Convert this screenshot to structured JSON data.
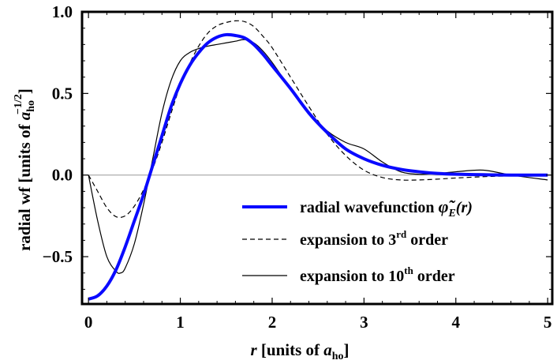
{
  "chart_data": {
    "type": "line",
    "title": "",
    "xlabel": {
      "var": "r",
      "pre": " [units of ",
      "sym": "a",
      "sub": "ho",
      "post": "]"
    },
    "ylabel": {
      "pre": "radial wf [units of ",
      "sym": "a",
      "sub": "ho",
      "sup": "−1/2",
      "post": "]"
    },
    "xlim": [
      -0.07,
      5.05
    ],
    "ylim": [
      -0.79,
      1.0
    ],
    "x_ticks": [
      0,
      1,
      2,
      3,
      4,
      5
    ],
    "x_tick_labels": [
      "0",
      "1",
      "2",
      "3",
      "4",
      "5"
    ],
    "y_ticks": [
      -0.5,
      0.0,
      0.5,
      1.0
    ],
    "y_tick_labels": [
      "−0.5",
      "0.0",
      "0.5",
      "1.0"
    ],
    "zero_line": true,
    "grid": false,
    "legend_position": "bottom-right",
    "colors": {
      "wavefunction": "#0a0aff",
      "expansion": "#000000",
      "zero_line": "#999999"
    },
    "series": [
      {
        "name": {
          "text": "radial wavefunction ",
          "phi": "φ̃",
          "sub": "E",
          "arg": "(r)"
        },
        "style": "thick-solid",
        "x": [
          0,
          0.1,
          0.2,
          0.3,
          0.4,
          0.5,
          0.6,
          0.7,
          0.8,
          0.9,
          1.0,
          1.1,
          1.2,
          1.3,
          1.4,
          1.5,
          1.6,
          1.7,
          1.8,
          1.9,
          2.0,
          2.2,
          2.4,
          2.6,
          2.8,
          3.0,
          3.2,
          3.4,
          3.6,
          3.8,
          4.0,
          4.3,
          4.6,
          5.0
        ],
        "y": [
          -0.76,
          -0.74,
          -0.68,
          -0.58,
          -0.44,
          -0.28,
          -0.12,
          0.06,
          0.24,
          0.42,
          0.56,
          0.67,
          0.75,
          0.81,
          0.845,
          0.86,
          0.855,
          0.84,
          0.8,
          0.74,
          0.67,
          0.53,
          0.38,
          0.26,
          0.16,
          0.1,
          0.06,
          0.035,
          0.02,
          0.01,
          0.005,
          0.002,
          0.0,
          0.0
        ]
      },
      {
        "name": {
          "text": "expansion to 3",
          "sup": "rd",
          "post": " order"
        },
        "style": "dashed",
        "x": [
          0,
          0.1,
          0.2,
          0.3,
          0.4,
          0.5,
          0.6,
          0.7,
          0.8,
          0.9,
          1.0,
          1.1,
          1.2,
          1.3,
          1.4,
          1.5,
          1.6,
          1.7,
          1.8,
          1.9,
          2.0,
          2.2,
          2.4,
          2.6,
          2.8,
          3.0,
          3.2,
          3.4,
          3.6,
          3.8,
          4.0,
          4.3,
          4.6,
          5.0
        ],
        "y": [
          0.0,
          -0.1,
          -0.2,
          -0.255,
          -0.25,
          -0.19,
          -0.09,
          0.04,
          0.2,
          0.38,
          0.55,
          0.68,
          0.79,
          0.87,
          0.915,
          0.935,
          0.945,
          0.94,
          0.91,
          0.85,
          0.78,
          0.6,
          0.42,
          0.25,
          0.12,
          0.03,
          -0.015,
          -0.03,
          -0.03,
          -0.025,
          -0.018,
          -0.01,
          -0.005,
          0.0
        ]
      },
      {
        "name": {
          "text": "expansion to 10",
          "sup": "th",
          "post": " order"
        },
        "style": "thin-solid",
        "x": [
          0,
          0.1,
          0.2,
          0.3,
          0.35,
          0.4,
          0.5,
          0.6,
          0.7,
          0.8,
          0.9,
          1.0,
          1.1,
          1.2,
          1.3,
          1.4,
          1.5,
          1.6,
          1.7,
          1.8,
          1.9,
          2.0,
          2.2,
          2.4,
          2.6,
          2.8,
          3.0,
          3.2,
          3.4,
          3.6,
          3.8,
          4.0,
          4.3,
          4.6,
          5.0
        ],
        "y": [
          0.0,
          -0.28,
          -0.5,
          -0.59,
          -0.6,
          -0.57,
          -0.42,
          -0.18,
          0.1,
          0.38,
          0.58,
          0.7,
          0.75,
          0.775,
          0.79,
          0.8,
          0.81,
          0.82,
          0.83,
          0.81,
          0.76,
          0.69,
          0.53,
          0.38,
          0.27,
          0.2,
          0.16,
          0.08,
          0.02,
          0.005,
          0.01,
          0.02,
          0.03,
          0.0,
          -0.03
        ]
      }
    ]
  }
}
